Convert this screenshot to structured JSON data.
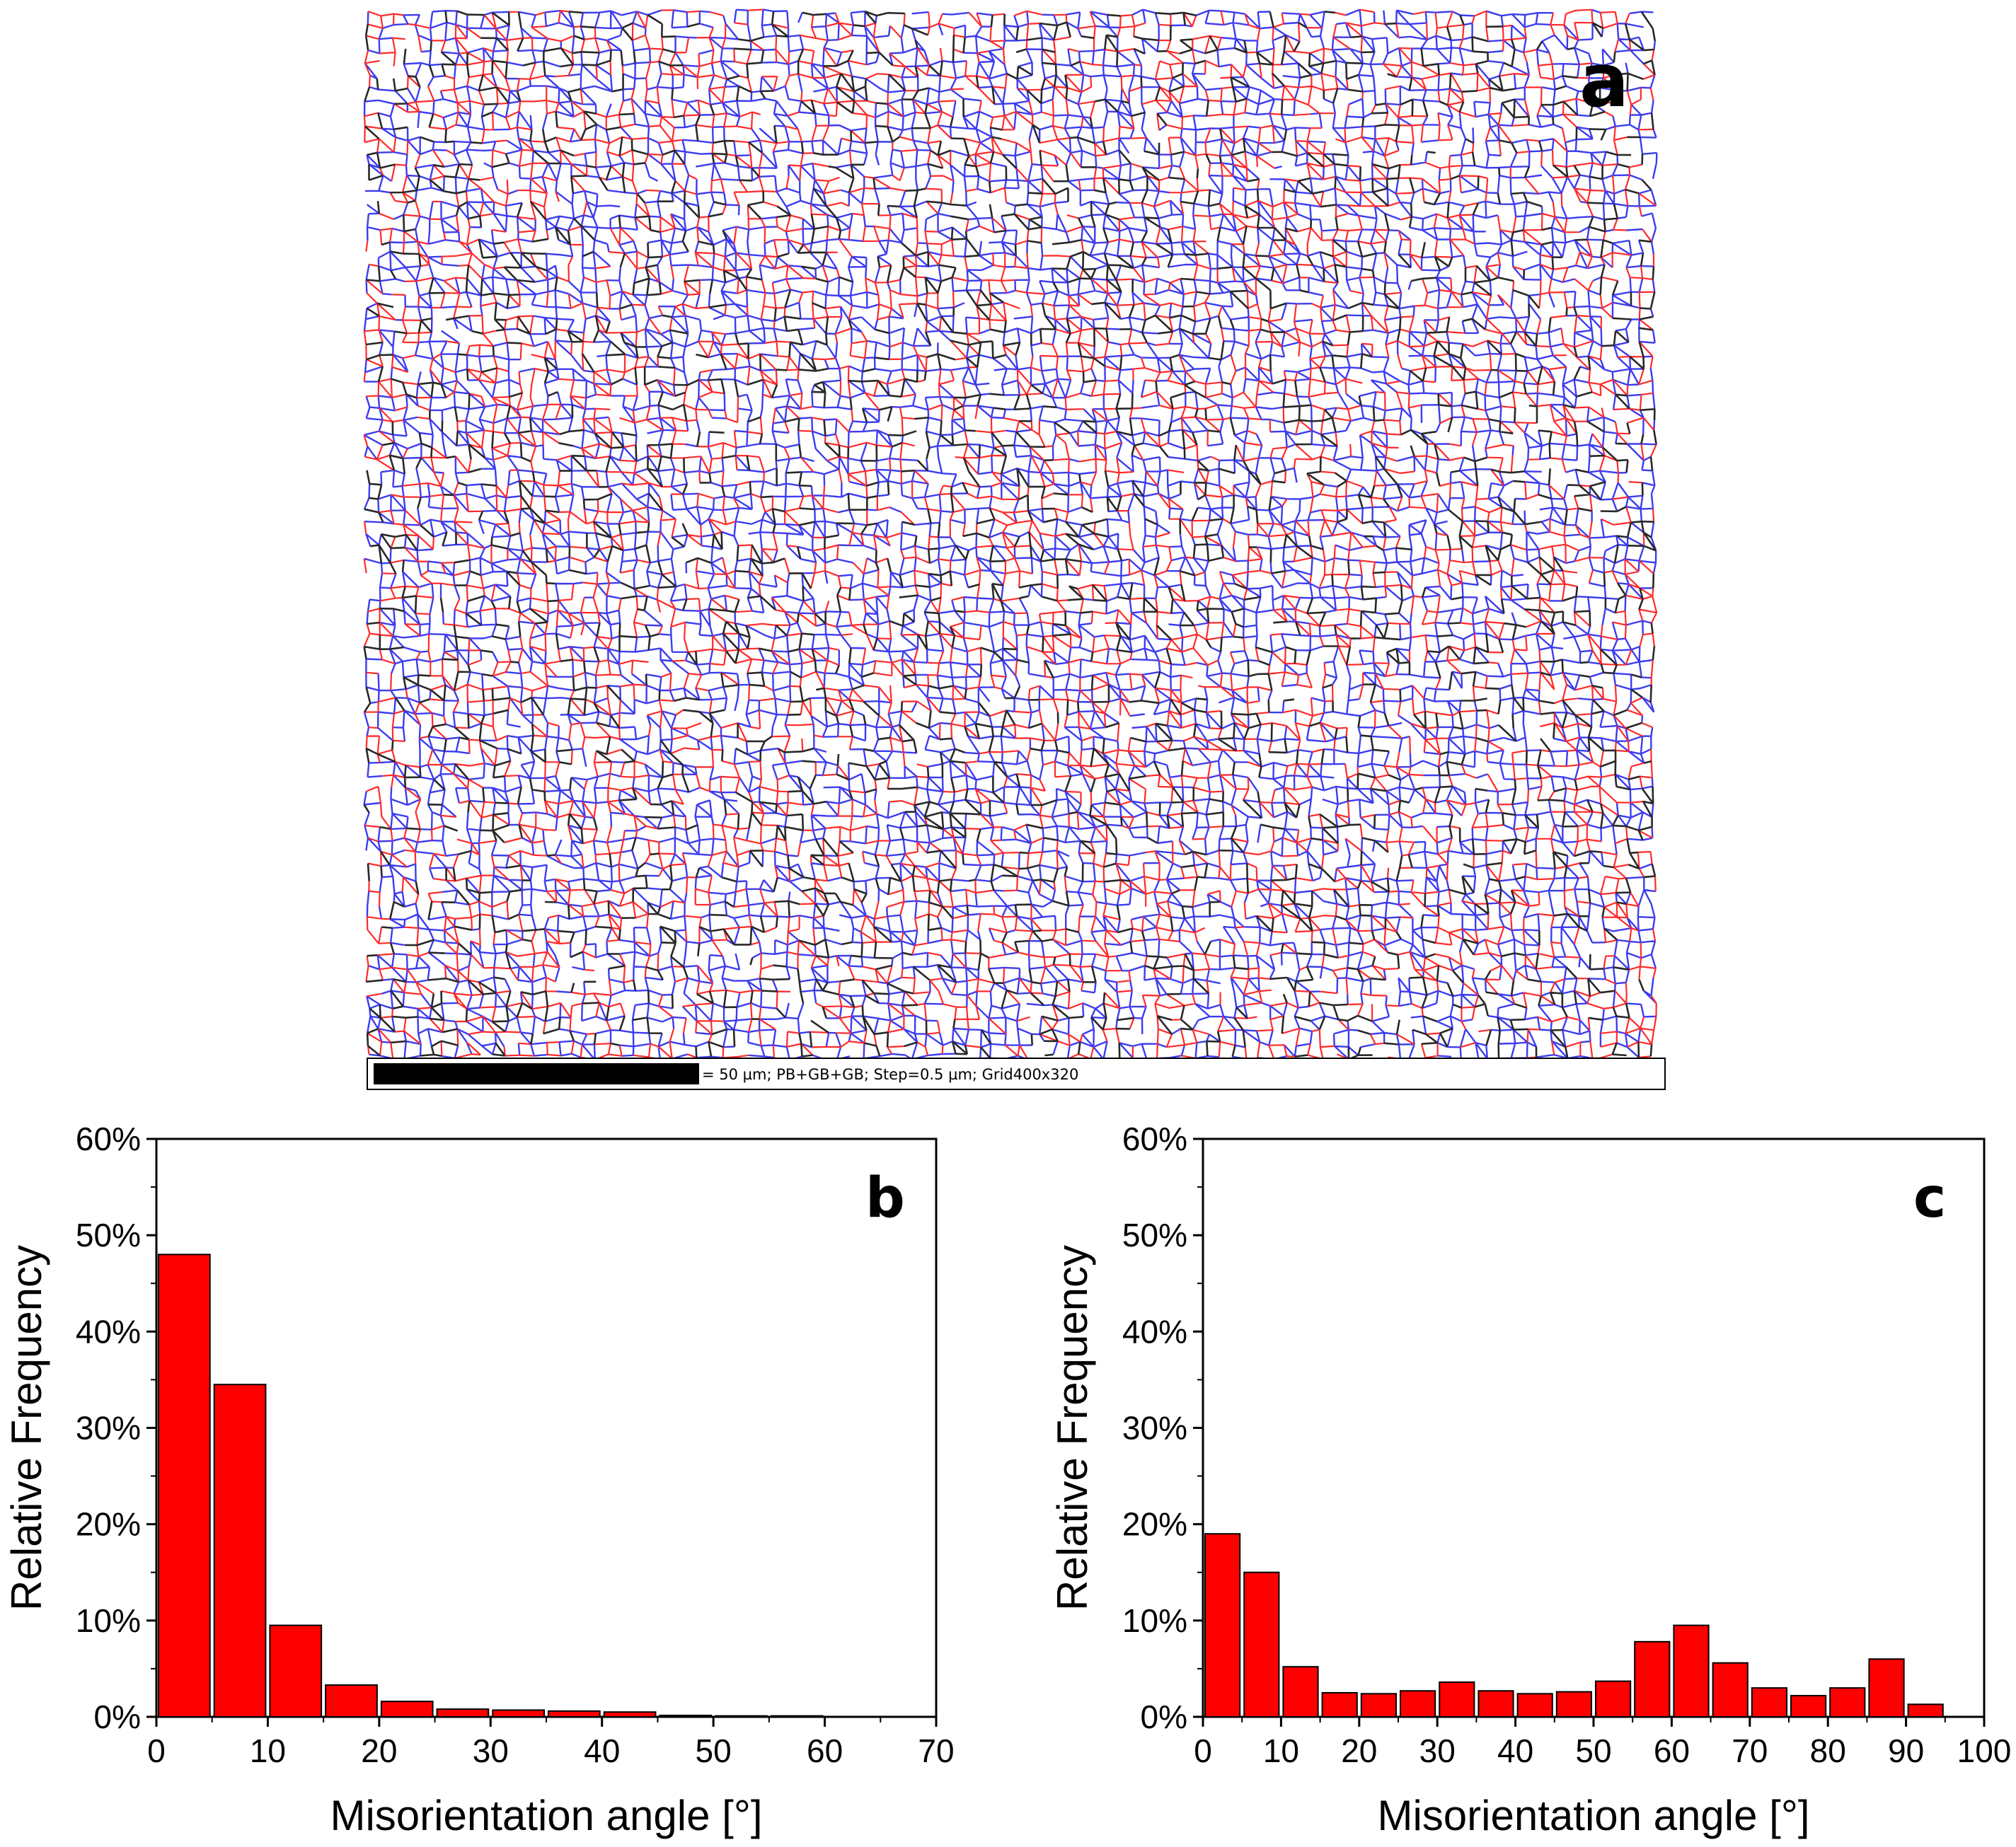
{
  "colors": {
    "bar_fill": "#ff0000",
    "bar_stroke": "#000000",
    "boundary_blue": "#3c3cf0",
    "boundary_red": "#ff2a2a",
    "boundary_black": "#282828"
  },
  "map": {
    "panel_letter": "a",
    "scale_text": "= 50 µm; PB+GB+GB; Step=0.5 µm; Grid400x320"
  },
  "chart_data": [
    {
      "type": "bar",
      "panel_letter": "b",
      "xlabel": "Misorientation angle [°]",
      "ylabel": "Relative Frequency",
      "xlim": [
        0,
        70
      ],
      "ylim": [
        0,
        60
      ],
      "bin_width": 5,
      "x_ticks": [
        "0",
        "10",
        "20",
        "30",
        "40",
        "50",
        "60",
        "70"
      ],
      "y_ticks": [
        "0%",
        "10%",
        "20%",
        "30%",
        "40%",
        "50%",
        "60%"
      ],
      "categories": [
        2.5,
        7.5,
        12.5,
        17.5,
        22.5,
        27.5,
        32.5,
        37.5,
        42.5,
        47.5,
        52.5,
        57.5
      ],
      "values": [
        48.0,
        34.5,
        9.5,
        3.3,
        1.6,
        0.8,
        0.7,
        0.6,
        0.5,
        0.15,
        0.1,
        0.1
      ]
    },
    {
      "type": "bar",
      "panel_letter": "c",
      "xlabel": "Misorientation angle [°]",
      "ylabel": "Relative Frequency",
      "xlim": [
        0,
        100
      ],
      "ylim": [
        0,
        60
      ],
      "bin_width": 5,
      "x_ticks": [
        "0",
        "10",
        "20",
        "30",
        "40",
        "50",
        "60",
        "70",
        "80",
        "90",
        "100"
      ],
      "y_ticks": [
        "0%",
        "10%",
        "20%",
        "30%",
        "40%",
        "50%",
        "60%"
      ],
      "categories": [
        2.5,
        7.5,
        12.5,
        17.5,
        22.5,
        27.5,
        32.5,
        37.5,
        42.5,
        47.5,
        52.5,
        57.5,
        62.5,
        67.5,
        72.5,
        77.5,
        82.5,
        87.5,
        92.5
      ],
      "values": [
        19.0,
        15.0,
        5.2,
        2.5,
        2.4,
        2.7,
        3.6,
        2.7,
        2.4,
        2.6,
        3.7,
        7.8,
        9.5,
        5.6,
        3.0,
        2.2,
        3.0,
        6.0,
        1.3
      ]
    }
  ]
}
